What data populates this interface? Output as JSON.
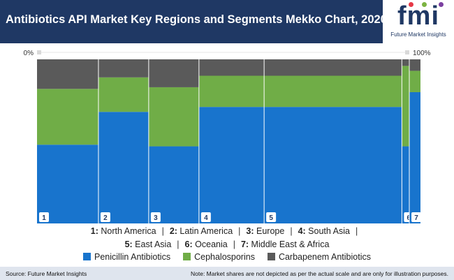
{
  "header": {
    "title": "Antibiotics API Market Key Regions and Segments Mekko Chart, 2020"
  },
  "logo": {
    "letters": "fmi",
    "caption": "Future Market Insights"
  },
  "chart_data": {
    "type": "mekko",
    "title": "Antibiotics API Market Key Regions and Segments Mekko Chart, 2020",
    "x_axis": {
      "min_label": "0%",
      "max_label": "100%"
    },
    "categories": [
      "1",
      "2",
      "3",
      "4",
      "5",
      "6",
      "7"
    ],
    "widths_percent": [
      16.5,
      13.5,
      13.5,
      17.5,
      37.0,
      2.0,
      3.0
    ],
    "series": [
      {
        "name": "Penicillin Antibiotics",
        "color": "#1874cd",
        "values": [
          48,
          68,
          47,
          71,
          71,
          47,
          80
        ]
      },
      {
        "name": "Cephalosporins",
        "color": "#70ad47",
        "values": [
          34,
          21,
          36,
          19,
          19,
          49,
          13
        ]
      },
      {
        "name": "Carbapenem Antibiotics",
        "color": "#5a5a5a",
        "values": [
          18,
          11,
          17,
          10,
          10,
          4,
          7
        ]
      }
    ],
    "region_legend": [
      {
        "num": "1:",
        "name": "North America"
      },
      {
        "num": "2:",
        "name": "Latin America"
      },
      {
        "num": "3:",
        "name": "Europe"
      },
      {
        "num": "4:",
        "name": "South Asia"
      },
      {
        "num": "5:",
        "name": "East Asia"
      },
      {
        "num": "6:",
        "name": "Oceania"
      },
      {
        "num": "7:",
        "name": "Middle East & Africa"
      }
    ]
  },
  "footer": {
    "source": "Source: Future Market Insights",
    "note": "Note: Market shares are not depicted as per the actual scale and are only for illustration purposes."
  }
}
